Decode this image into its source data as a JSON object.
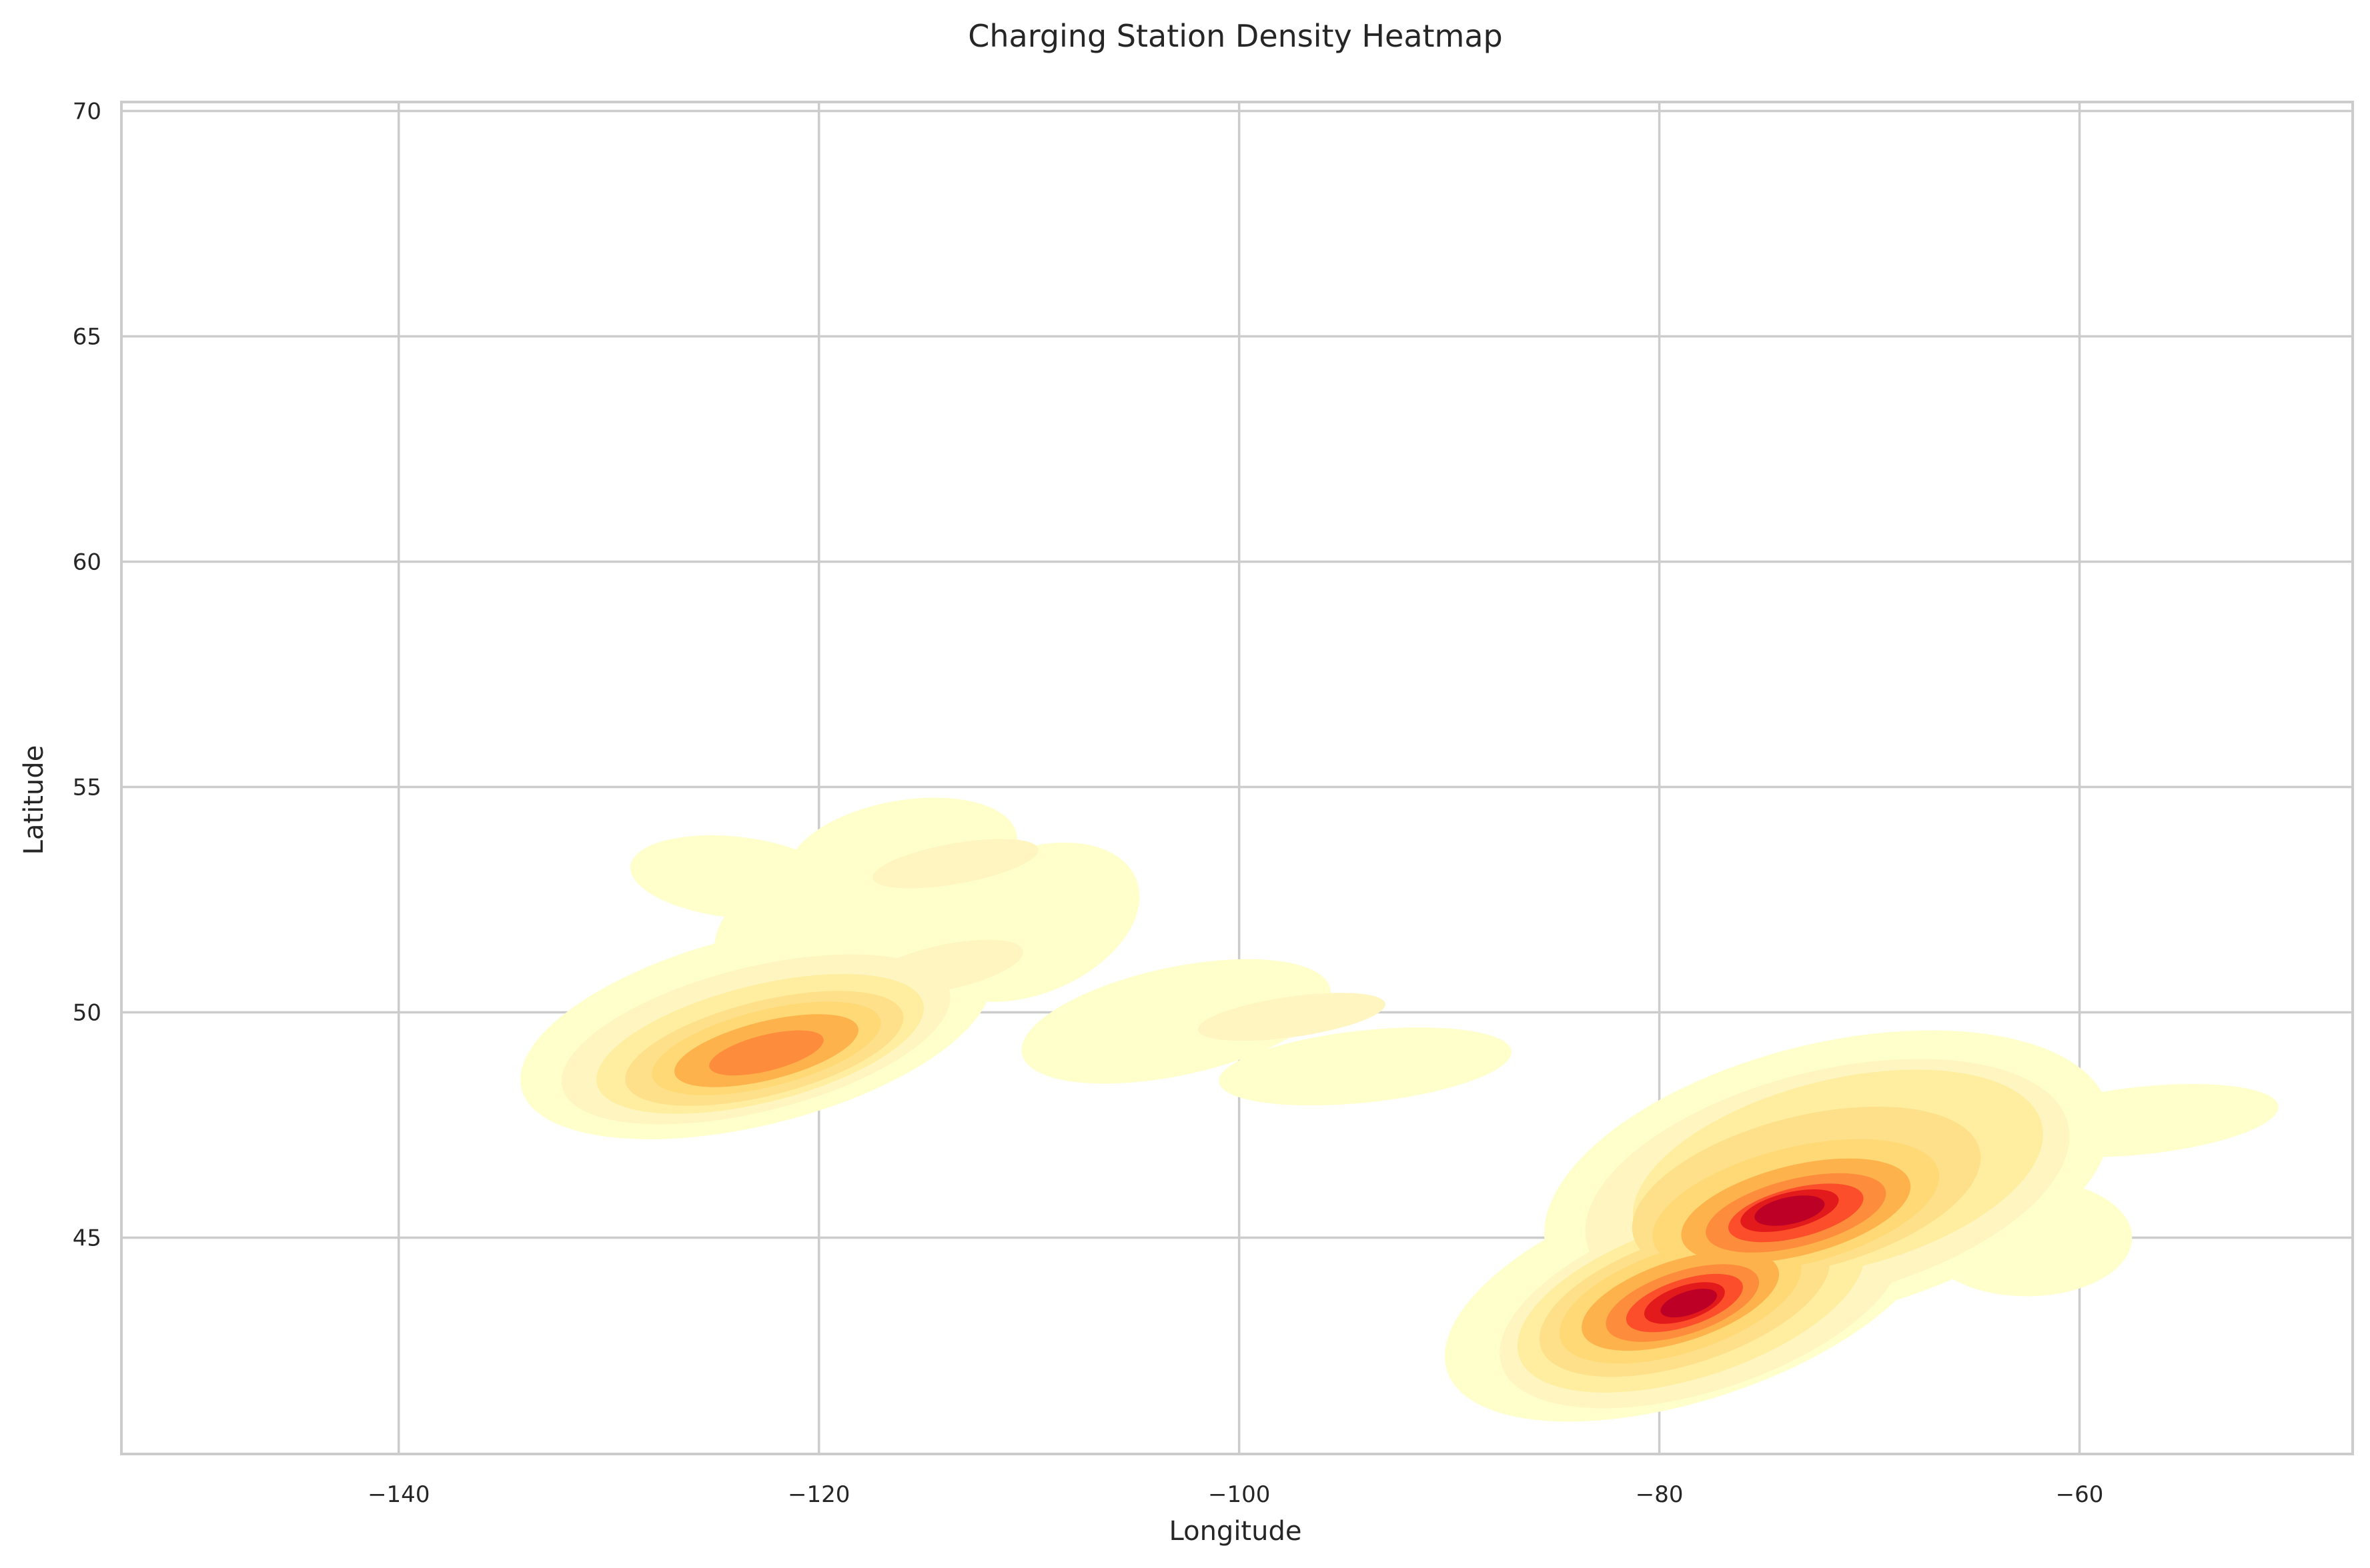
{
  "chart_data": {
    "type": "heatmap",
    "subtype": "kde-density-contour",
    "title": "Charging Station Density Heatmap",
    "xlabel": "Longitude",
    "ylabel": "Latitude",
    "xlim": [
      -153.2,
      -47.0
    ],
    "ylim": [
      40.2,
      70.2
    ],
    "x_ticks": [
      -140,
      -120,
      -100,
      -80,
      -60
    ],
    "x_tick_labels": [
      "−140",
      "−120",
      "−100",
      "−80",
      "−60"
    ],
    "y_ticks": [
      45,
      50,
      55,
      60,
      65,
      70
    ],
    "y_tick_labels": [
      "45",
      "50",
      "55",
      "60",
      "65",
      "70"
    ],
    "grid": true,
    "legend": "none",
    "colormap": "YlOrRd",
    "level_colors": [
      "#ffffcc",
      "#fff5c0",
      "#ffeda0",
      "#fee08b",
      "#fed976",
      "#feb24c",
      "#fd8d3c",
      "#fc4e2a",
      "#e31a1c",
      "#bd0026"
    ],
    "colors": {
      "background": "#ffffff",
      "grid": "#cccccc",
      "spine": "#cccccc",
      "text": "#262626"
    },
    "clusters": [
      {
        "lon": -78.5,
        "lat": 43.5,
        "peak_level": 9
      },
      {
        "lon": -73.5,
        "lat": 45.5,
        "peak_level": 9
      },
      {
        "lon": -122.5,
        "lat": 49.1,
        "peak_level": 6
      },
      {
        "lon": -113.5,
        "lat": 53.3,
        "peak_level": 1
      },
      {
        "lon": -114.0,
        "lat": 51.0,
        "peak_level": 1
      },
      {
        "lon": -97.5,
        "lat": 49.9,
        "peak_level": 1
      },
      {
        "lon": -71.0,
        "lat": 47.8,
        "peak_level": 2
      }
    ]
  }
}
